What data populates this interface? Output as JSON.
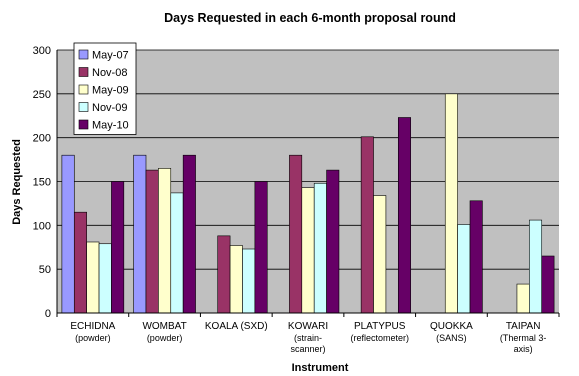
{
  "chart_data": {
    "type": "bar",
    "title": "Days Requested in each 6-month proposal round",
    "xlabel": "Instrument",
    "ylabel": "Days Requested",
    "ylim": [
      0,
      300
    ],
    "yticks": [
      "0",
      "50",
      "100",
      "150",
      "200",
      "250",
      "300"
    ],
    "grid": true,
    "legend_position": "top-left",
    "categories": [
      {
        "name": "ECHIDNA",
        "sub": [
          "(powder)"
        ]
      },
      {
        "name": "WOMBAT",
        "sub": [
          "(powder)"
        ]
      },
      {
        "name": "KOALA (SXD)",
        "sub": []
      },
      {
        "name": "KOWARI",
        "sub": [
          "(strain-",
          "scanner)"
        ]
      },
      {
        "name": "PLATYPUS",
        "sub": [
          "(reflectometer)"
        ]
      },
      {
        "name": "QUOKKA",
        "sub": [
          "(SANS)"
        ]
      },
      {
        "name": "TAIPAN",
        "sub": [
          "(Thermal 3-",
          "axis)"
        ]
      }
    ],
    "series": [
      {
        "name": "May-07",
        "color": "#9999ff",
        "values": [
          180,
          180,
          null,
          null,
          null,
          null,
          null
        ]
      },
      {
        "name": "Nov-08",
        "color": "#993366",
        "values": [
          115,
          163,
          88,
          180,
          201,
          null,
          null
        ]
      },
      {
        "name": "May-09",
        "color": "#ffffcc",
        "values": [
          81,
          165,
          77,
          143,
          134,
          250,
          33
        ]
      },
      {
        "name": "Nov-09",
        "color": "#ccffff",
        "values": [
          79,
          137,
          73,
          148,
          null,
          101,
          106
        ]
      },
      {
        "name": "May-10",
        "color": "#660066",
        "values": [
          150,
          180,
          150,
          163,
          223,
          128,
          65
        ]
      }
    ],
    "plot_background": "#c0c0c0"
  }
}
